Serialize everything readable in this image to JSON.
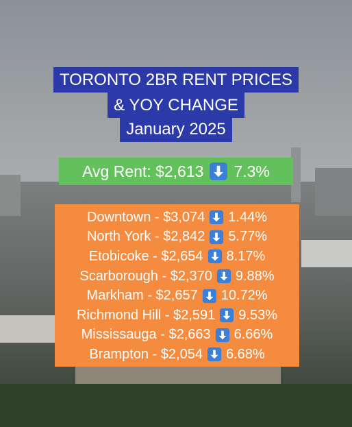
{
  "title": {
    "lines": [
      "TORONTO 2BR RENT PRICES",
      "& YOY CHANGE",
      "January 2025"
    ]
  },
  "average": {
    "label": "Avg Rent: $2,613",
    "change": "7.3%"
  },
  "rows": [
    {
      "label": "Downtown - $3,074",
      "change": "1.44%"
    },
    {
      "label": "North York - $2,842",
      "change": "5.77%"
    },
    {
      "label": "Etobicoke - $2,654",
      "change": "8.17%"
    },
    {
      "label": "Scarborough - $2,370",
      "change": "9.88%"
    },
    {
      "label": "Markham - $2,657",
      "change": "10.72%"
    },
    {
      "label": "Richmond Hill - $2,591",
      "change": "9.53%"
    },
    {
      "label": "Mississauga - $2,663",
      "change": "6.66%"
    },
    {
      "label": "Brampton - $2,054",
      "change": "6.68%"
    }
  ]
}
